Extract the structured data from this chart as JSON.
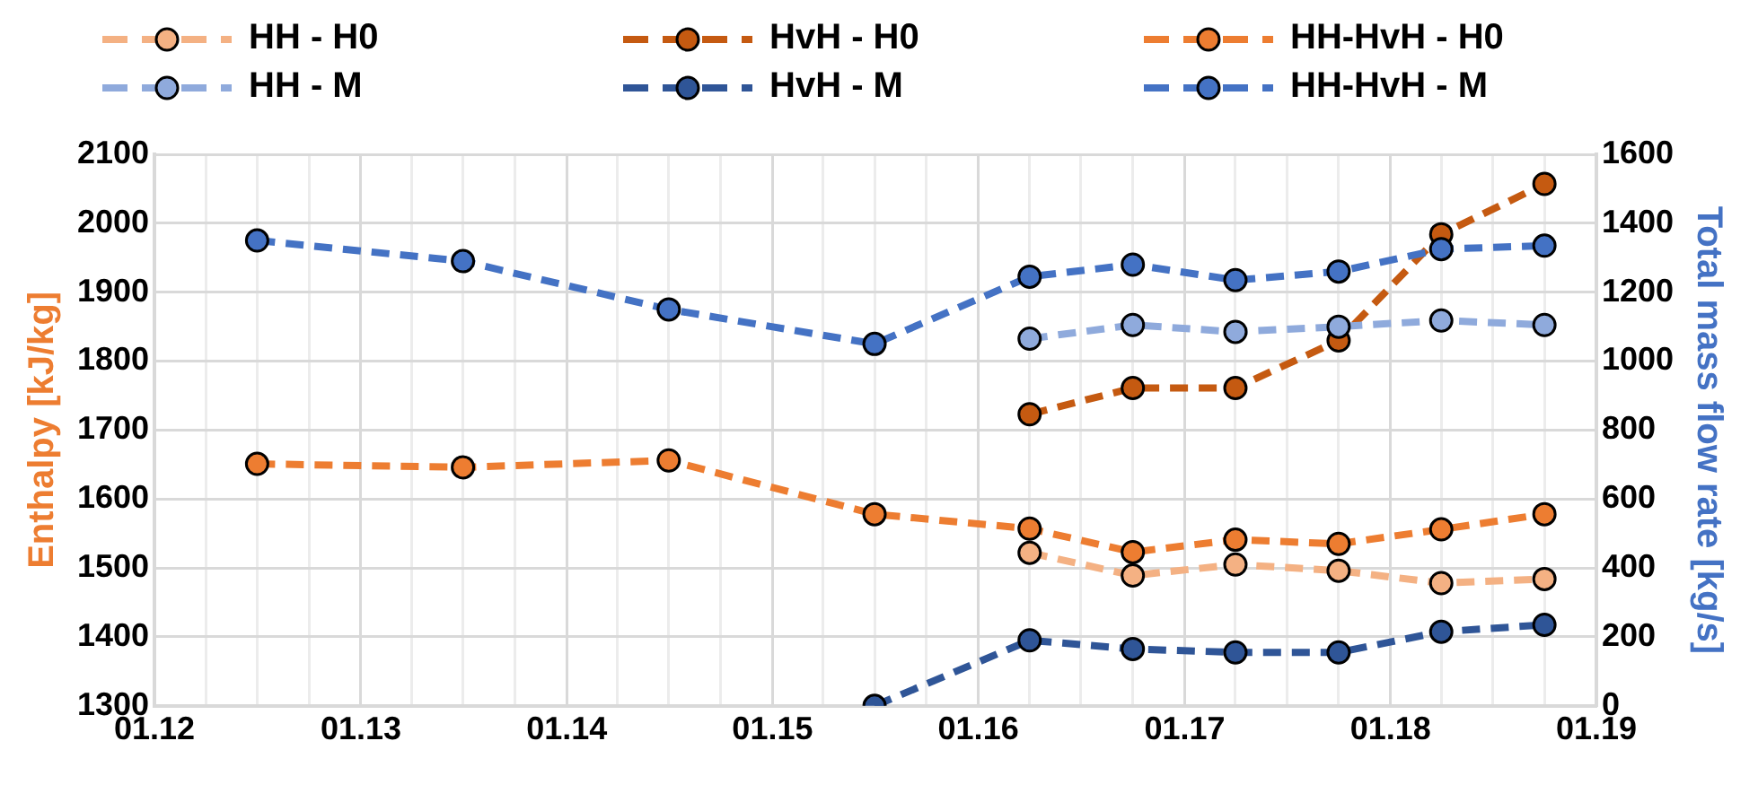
{
  "chart_data": {
    "type": "line",
    "ylabel": "Enthalpy [kJ/kg]",
    "y2label": "Total mass flow rate [kg/s]",
    "x": [
      "2012-07",
      "2013-07",
      "2014-07",
      "2015-07",
      "2016-04",
      "2016-10",
      "2017-04",
      "2017-10",
      "2018-04",
      "2018-10"
    ],
    "xlim": [
      "2012-01",
      "2019-01"
    ],
    "xticks": [
      {
        "value": "2012-01",
        "label": "01.12"
      },
      {
        "value": "2012-04",
        "label": null
      },
      {
        "value": "2012-07",
        "label": null
      },
      {
        "value": "2012-10",
        "label": null
      },
      {
        "value": "2013-01",
        "label": "01.13"
      },
      {
        "value": "2013-04",
        "label": null
      },
      {
        "value": "2013-07",
        "label": null
      },
      {
        "value": "2013-10",
        "label": null
      },
      {
        "value": "2014-01",
        "label": "01.14"
      },
      {
        "value": "2014-04",
        "label": null
      },
      {
        "value": "2014-07",
        "label": null
      },
      {
        "value": "2014-10",
        "label": null
      },
      {
        "value": "2015-01",
        "label": "01.15"
      },
      {
        "value": "2015-04",
        "label": null
      },
      {
        "value": "2015-07",
        "label": null
      },
      {
        "value": "2015-10",
        "label": null
      },
      {
        "value": "2016-01",
        "label": "01.16"
      },
      {
        "value": "2016-04",
        "label": null
      },
      {
        "value": "2016-07",
        "label": null
      },
      {
        "value": "2016-10",
        "label": null
      },
      {
        "value": "2017-01",
        "label": "01.17"
      },
      {
        "value": "2017-04",
        "label": null
      },
      {
        "value": "2017-07",
        "label": null
      },
      {
        "value": "2017-10",
        "label": null
      },
      {
        "value": "2018-01",
        "label": "01.18"
      },
      {
        "value": "2018-04",
        "label": null
      },
      {
        "value": "2018-07",
        "label": null
      },
      {
        "value": "2018-10",
        "label": null
      },
      {
        "value": "2019-01",
        "label": "01.19"
      }
    ],
    "ylim": [
      1300,
      2100
    ],
    "yticks": [
      1300,
      1400,
      1500,
      1600,
      1700,
      1800,
      1900,
      2000,
      2100
    ],
    "y2lim": [
      0,
      1600
    ],
    "y2ticks": [
      0,
      200,
      400,
      600,
      800,
      1000,
      1200,
      1400,
      1600
    ],
    "grid": true,
    "legend": "top",
    "marker": "circle",
    "line_style": "dashed",
    "series": [
      {
        "name": "HH - H0",
        "color": "#f4b183",
        "values": [
          null,
          null,
          null,
          null,
          1522,
          1489,
          1505,
          1496,
          1478,
          1484
        ]
      },
      {
        "name": "HvH - H0",
        "color": "#c55a11",
        "values": [
          null,
          null,
          null,
          null,
          1723,
          1761,
          1761,
          1830,
          1984,
          2057
        ]
      },
      {
        "name": "HH-HvH - H0",
        "color": "#ed7d31",
        "values": [
          1651,
          1646,
          1656,
          1578,
          1557,
          1523,
          1541,
          1535,
          1556,
          1578
        ]
      },
      {
        "name": "HH - M",
        "color": "#8faadc",
        "axis": "y2",
        "values": [
          null,
          null,
          null,
          null,
          1065,
          1105,
          1085,
          1100,
          1118,
          1105
        ]
      },
      {
        "name": "HvH - M",
        "color": "#2f5597",
        "axis": "y2",
        "values": [
          null,
          null,
          null,
          0,
          190,
          165,
          155,
          155,
          215,
          235
        ]
      },
      {
        "name": "HH-HvH - M",
        "color": "#4472c4",
        "axis": "y2",
        "values": [
          1350,
          1290,
          1150,
          1050,
          1245,
          1280,
          1235,
          1260,
          1325,
          1335
        ]
      }
    ]
  }
}
